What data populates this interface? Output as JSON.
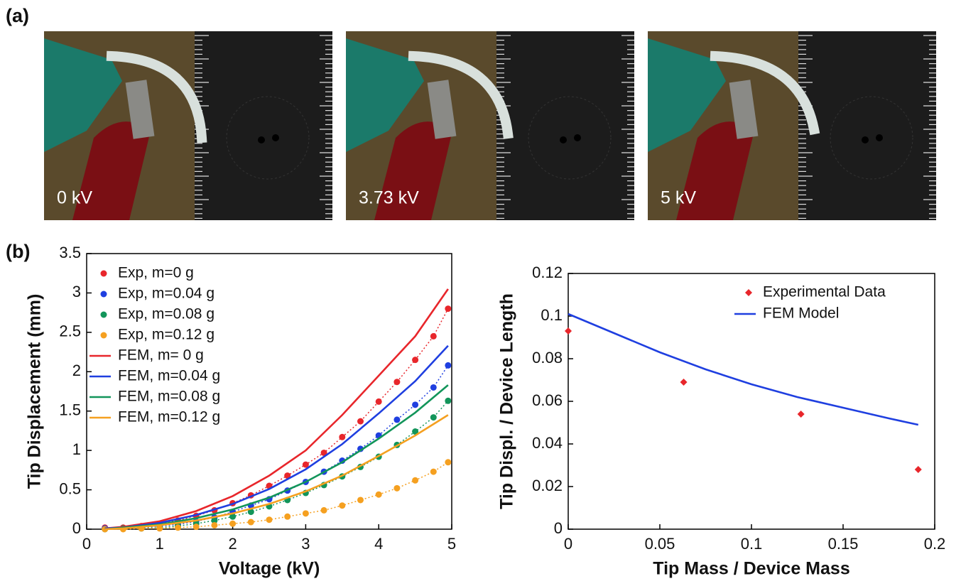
{
  "panel_labels": [
    "(a)",
    "(b)"
  ],
  "photos": [
    {
      "label": "0 kV"
    },
    {
      "label": "3.73 kV"
    },
    {
      "label": "5 kV"
    }
  ],
  "chart_data": [
    {
      "type": "line",
      "xlabel": "Voltage (kV)",
      "ylabel": "Tip Displacement (mm)",
      "xlim": [
        0,
        5
      ],
      "ylim": [
        0,
        3.5
      ],
      "xticks": [
        0,
        1,
        2,
        3,
        4,
        5
      ],
      "yticks": [
        0,
        0.5,
        1,
        1.5,
        2,
        2.5,
        3,
        3.5
      ],
      "legend": "upper left",
      "series": [
        {
          "name": "Exp, m=0 g",
          "color": "#e8262b",
          "style": "markers-dotted",
          "marker": "circle",
          "x": [
            0.25,
            0.5,
            0.75,
            1,
            1.25,
            1.5,
            1.75,
            2,
            2.25,
            2.5,
            2.75,
            3,
            3.25,
            3.5,
            3.75,
            4,
            4.25,
            4.5,
            4.75,
            4.95
          ],
          "values": [
            0.02,
            0.02,
            0.04,
            0.07,
            0.11,
            0.17,
            0.24,
            0.33,
            0.43,
            0.55,
            0.68,
            0.82,
            0.97,
            1.17,
            1.37,
            1.62,
            1.87,
            2.15,
            2.45,
            2.8
          ]
        },
        {
          "name": "Exp, m=0.04 g",
          "color": "#1f3fe0",
          "style": "markers-dotted",
          "marker": "circle",
          "x": [
            0.25,
            0.5,
            0.75,
            1,
            1.25,
            1.5,
            1.75,
            2,
            2.25,
            2.5,
            2.75,
            3,
            3.25,
            3.5,
            3.75,
            4,
            4.25,
            4.5,
            4.75,
            4.95
          ],
          "values": [
            0.01,
            0.01,
            0.02,
            0.04,
            0.06,
            0.1,
            0.15,
            0.22,
            0.3,
            0.38,
            0.49,
            0.6,
            0.73,
            0.87,
            1.02,
            1.19,
            1.39,
            1.58,
            1.8,
            2.08
          ]
        },
        {
          "name": "Exp, m=0.08 g",
          "color": "#12955a",
          "style": "markers-dotted",
          "marker": "circle",
          "x": [
            0.25,
            0.5,
            0.75,
            1,
            1.25,
            1.5,
            1.75,
            2,
            2.25,
            2.5,
            2.75,
            3,
            3.25,
            3.5,
            3.75,
            4,
            4.25,
            4.5,
            4.75,
            4.95
          ],
          "values": [
            0,
            0.01,
            0.01,
            0.02,
            0.04,
            0.07,
            0.11,
            0.16,
            0.22,
            0.29,
            0.37,
            0.46,
            0.56,
            0.67,
            0.79,
            0.92,
            1.07,
            1.24,
            1.42,
            1.63
          ]
        },
        {
          "name": "Exp, m=0.12 g",
          "color": "#f5a020",
          "style": "markers-dotted",
          "marker": "circle",
          "x": [
            0.25,
            0.5,
            0.75,
            1,
            1.25,
            1.5,
            1.75,
            2,
            2.25,
            2.5,
            2.75,
            3,
            3.25,
            3.5,
            3.75,
            4,
            4.25,
            4.5,
            4.75,
            4.95
          ],
          "values": [
            0,
            0,
            0.01,
            0.01,
            0.02,
            0.03,
            0.05,
            0.07,
            0.09,
            0.12,
            0.16,
            0.2,
            0.24,
            0.3,
            0.37,
            0.44,
            0.52,
            0.62,
            0.73,
            0.85
          ]
        },
        {
          "name": "FEM, m= 0 g",
          "color": "#e8262b",
          "style": "line",
          "x": [
            0.25,
            0.5,
            1,
            1.5,
            2,
            2.5,
            3,
            3.5,
            4,
            4.5,
            4.95
          ],
          "values": [
            0.01,
            0.03,
            0.1,
            0.23,
            0.42,
            0.68,
            1.0,
            1.45,
            1.95,
            2.45,
            3.05
          ]
        },
        {
          "name": "FEM, m=0.04 g",
          "color": "#1f3fe0",
          "style": "line",
          "x": [
            0.25,
            0.5,
            1,
            1.5,
            2,
            2.5,
            3,
            3.5,
            4,
            4.5,
            4.95
          ],
          "values": [
            0.01,
            0.02,
            0.08,
            0.18,
            0.32,
            0.51,
            0.76,
            1.08,
            1.47,
            1.88,
            2.33
          ]
        },
        {
          "name": "FEM, m=0.08 g",
          "color": "#12955a",
          "style": "line",
          "x": [
            0.25,
            0.5,
            1,
            1.5,
            2,
            2.5,
            3,
            3.5,
            4,
            4.5,
            4.95
          ],
          "values": [
            0,
            0.02,
            0.06,
            0.14,
            0.25,
            0.4,
            0.6,
            0.85,
            1.15,
            1.48,
            1.83
          ]
        },
        {
          "name": "FEM, m=0.12 g",
          "color": "#f5a020",
          "style": "line",
          "x": [
            0.25,
            0.5,
            1,
            1.5,
            2,
            2.5,
            3,
            3.5,
            4,
            4.5,
            4.95
          ],
          "values": [
            0,
            0.01,
            0.05,
            0.11,
            0.2,
            0.32,
            0.48,
            0.68,
            0.93,
            1.19,
            1.45
          ]
        }
      ]
    },
    {
      "type": "line",
      "xlabel": "Tip Mass / Device Mass",
      "ylabel": "Tip Displ. / Device Length",
      "xlim": [
        0,
        0.2
      ],
      "ylim": [
        0,
        0.12
      ],
      "xticks": [
        0,
        0.05,
        0.1,
        0.15,
        0.2
      ],
      "yticks": [
        0,
        0.02,
        0.04,
        0.06,
        0.08,
        0.1,
        0.12
      ],
      "legend": "upper right",
      "series": [
        {
          "name": "Experimental Data",
          "color": "#e8262b",
          "style": "markers",
          "marker": "diamond",
          "x": [
            0,
            0.063,
            0.127,
            0.191
          ],
          "values": [
            0.093,
            0.069,
            0.054,
            0.028
          ]
        },
        {
          "name": "FEM Model",
          "color": "#1f3fe0",
          "style": "line",
          "x": [
            0,
            0.025,
            0.05,
            0.075,
            0.1,
            0.125,
            0.15,
            0.175,
            0.191
          ],
          "values": [
            0.101,
            0.092,
            0.083,
            0.075,
            0.068,
            0.062,
            0.057,
            0.052,
            0.049
          ]
        }
      ]
    }
  ]
}
